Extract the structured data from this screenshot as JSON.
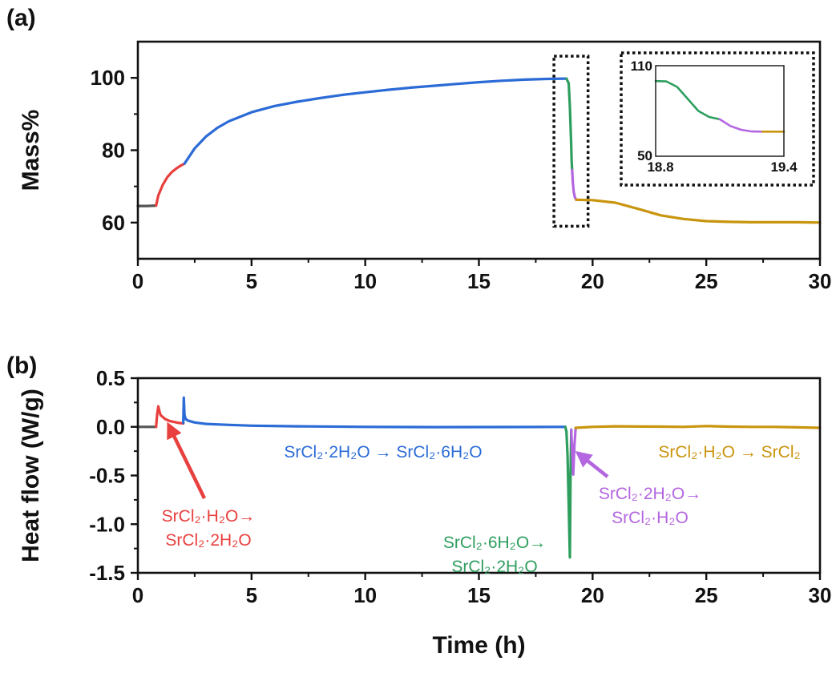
{
  "colors": {
    "initial": "#555555",
    "red": "#E8403E",
    "blue": "#2B6BD6",
    "green": "#2E9E5E",
    "purple": "#B366E0",
    "gold": "#C9950E",
    "axis": "#111111"
  },
  "chart_data": [
    {
      "type": "line",
      "panel_label": "(a)",
      "xlabel": "",
      "ylabel": "Mass%",
      "xlim": [
        0,
        30
      ],
      "ylim": [
        50,
        110
      ],
      "xticks": [
        0,
        5,
        10,
        15,
        20,
        25,
        30
      ],
      "yticks": [
        60,
        80,
        100
      ],
      "grid": false,
      "highlight_box": {
        "x": [
          18.3,
          19.8
        ],
        "y": [
          59,
          106
        ],
        "style": "dotted"
      },
      "series": [
        {
          "color_key": "initial",
          "x": [
            0,
            0.4,
            0.8
          ],
          "y": [
            64.6,
            64.6,
            64.7
          ]
        },
        {
          "color_key": "red",
          "x": [
            0.8,
            0.9,
            1.1,
            1.3,
            1.5,
            1.7,
            1.9,
            2.05
          ],
          "y": [
            64.7,
            67.5,
            70.5,
            72.6,
            74.0,
            75.0,
            75.8,
            76.3
          ]
        },
        {
          "color_key": "blue",
          "x": [
            2.05,
            2.5,
            3,
            3.5,
            4,
            5,
            6,
            7,
            8,
            9,
            10,
            11,
            12,
            13,
            14,
            15,
            16,
            17,
            18,
            18.85
          ],
          "y": [
            76.3,
            80.5,
            83.8,
            86.2,
            88.0,
            90.5,
            92.2,
            93.4,
            94.4,
            95.3,
            96.0,
            96.7,
            97.3,
            97.8,
            98.3,
            98.8,
            99.2,
            99.5,
            99.7,
            99.8
          ]
        },
        {
          "color_key": "green",
          "x": [
            18.85,
            18.95,
            19.0,
            19.05,
            19.08,
            19.1
          ],
          "y": [
            99.8,
            98.5,
            92.0,
            83.0,
            77.0,
            74.5
          ]
        },
        {
          "color_key": "purple",
          "x": [
            19.1,
            19.13,
            19.17,
            19.22,
            19.28
          ],
          "y": [
            74.5,
            71.0,
            68.5,
            67.0,
            66.3
          ]
        },
        {
          "color_key": "gold",
          "x": [
            19.28,
            20,
            21,
            22,
            23,
            24,
            25,
            26,
            27,
            28,
            29,
            30
          ],
          "y": [
            66.3,
            66.2,
            65.5,
            63.8,
            62.0,
            61.0,
            60.4,
            60.2,
            60.1,
            60.1,
            60.1,
            60.0
          ]
        }
      ],
      "inset": {
        "xlim": [
          18.8,
          19.4
        ],
        "ylim": [
          50,
          110
        ],
        "xtick_labels": [
          "18.8",
          "19.4"
        ],
        "ytick_labels": [
          "50",
          "110"
        ],
        "style": "dotted",
        "series": [
          {
            "color_key": "green",
            "x": [
              18.8,
              18.85,
              18.9,
              18.95,
              19.0,
              19.05,
              19.1
            ],
            "y": [
              99.8,
              99.6,
              96.0,
              88.0,
              80.0,
              76.0,
              74.5
            ]
          },
          {
            "color_key": "purple",
            "x": [
              19.1,
              19.15,
              19.2,
              19.25,
              19.3
            ],
            "y": [
              74.5,
              70.0,
              67.5,
              66.4,
              66.3
            ]
          },
          {
            "color_key": "gold",
            "x": [
              19.3,
              19.35,
              19.4
            ],
            "y": [
              66.3,
              66.3,
              66.3
            ]
          }
        ]
      }
    },
    {
      "type": "line",
      "panel_label": "(b)",
      "xlabel": "Time (h)",
      "ylabel": "Heat flow (W/g)",
      "xlim": [
        0,
        30
      ],
      "ylim": [
        -1.5,
        0.5
      ],
      "xticks": [
        0,
        5,
        10,
        15,
        20,
        25,
        30
      ],
      "yticks": [
        -1.5,
        -1.0,
        -0.5,
        0.0,
        0.5
      ],
      "ytick_labels": [
        "-1.5",
        "-1.0",
        "-0.5",
        "0.0",
        "0.5"
      ],
      "grid": false,
      "series": [
        {
          "color_key": "initial",
          "x": [
            0,
            0.4,
            0.8
          ],
          "y": [
            0.0,
            0.0,
            0.0
          ]
        },
        {
          "color_key": "red",
          "x": [
            0.8,
            0.85,
            0.9,
            0.95,
            1.0,
            1.2,
            1.4,
            1.6,
            1.8,
            2.0
          ],
          "y": [
            0.0,
            0.13,
            0.21,
            0.16,
            0.12,
            0.08,
            0.06,
            0.05,
            0.04,
            0.035
          ]
        },
        {
          "color_key": "blue",
          "x": [
            2.0,
            2.02,
            2.05,
            2.1,
            2.2,
            2.5,
            3,
            4,
            5,
            7,
            10,
            13,
            16,
            18.8
          ],
          "y": [
            0.04,
            0.3,
            0.12,
            0.08,
            0.065,
            0.045,
            0.03,
            0.02,
            0.012,
            0.005,
            0.0,
            -0.003,
            -0.002,
            0.0
          ]
        },
        {
          "color_key": "green",
          "x": [
            18.8,
            18.85,
            18.9,
            18.95,
            19.0,
            19.03,
            19.06
          ],
          "y": [
            0.0,
            -0.05,
            -0.3,
            -0.8,
            -1.34,
            -0.5,
            -0.03
          ]
        },
        {
          "color_key": "purple",
          "x": [
            19.06,
            19.1,
            19.15,
            19.2,
            19.25
          ],
          "y": [
            -0.03,
            -0.25,
            -0.49,
            -0.2,
            -0.02
          ]
        },
        {
          "color_key": "gold",
          "x": [
            19.25,
            20,
            21,
            22,
            23,
            24,
            25,
            26,
            27,
            28,
            29,
            30
          ],
          "y": [
            -0.01,
            0.0,
            0.005,
            0.003,
            0.002,
            0.0,
            0.008,
            0.002,
            0.0,
            0.0,
            -0.005,
            -0.01
          ]
        }
      ],
      "annotations": [
        {
          "color_key": "red",
          "lines": [
            "SrCl₂·H₂O→",
            "SrCl₂·2H₂O"
          ],
          "arrow_to": [
            1.35,
            0.02
          ]
        },
        {
          "color_key": "blue",
          "lines": [
            "SrCl₂·2H₂O → SrCl₂·6H₂O"
          ]
        },
        {
          "color_key": "green",
          "lines": [
            "SrCl₂·6H₂O→",
            "SrCl₂·2H₂O"
          ]
        },
        {
          "color_key": "purple",
          "lines": [
            "SrCl₂·2H₂O→",
            "SrCl₂·H₂O"
          ],
          "arrow_to": [
            19.35,
            -0.27
          ]
        },
        {
          "color_key": "gold",
          "lines": [
            "SrCl₂·H₂O → SrCl₂"
          ]
        }
      ]
    }
  ]
}
